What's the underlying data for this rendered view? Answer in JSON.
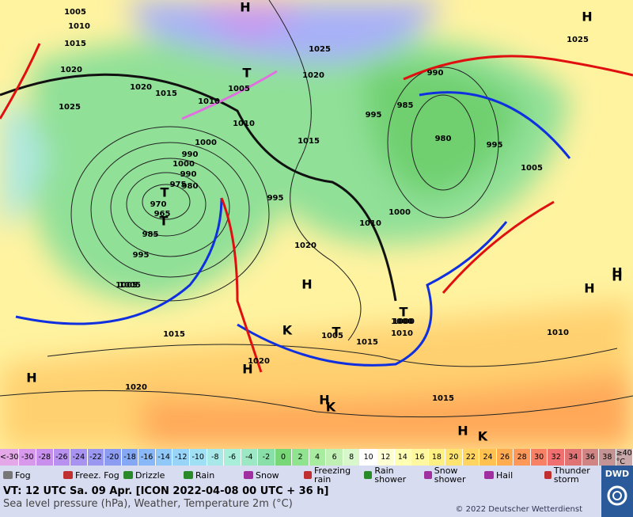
{
  "map": {
    "labels": [
      "H",
      "1005",
      "1010",
      "1015",
      "1020",
      "1025",
      "1015",
      "1020",
      "1025",
      "H",
      "1005",
      "T",
      "1010",
      "1010",
      "1015",
      "1020",
      "1025",
      "985",
      "990",
      "980",
      "995",
      "1000",
      "995",
      "1005",
      "1000",
      "990",
      "T",
      "1000",
      "990",
      "980",
      "975",
      "970",
      "965",
      "T",
      "985",
      "995",
      "1005",
      "1015",
      "1010",
      "1000",
      "995",
      "1020",
      "H",
      "1020",
      "H",
      "1010",
      "H",
      "H",
      "1015",
      "1010",
      "1005",
      "T",
      "1000",
      "1015",
      "K",
      "K",
      "T",
      "H",
      "K",
      "H",
      "1005",
      "H",
      "H",
      "1020"
    ],
    "colorbar": [
      {
        "label": "<-30",
        "color": "#e4a8e8"
      },
      {
        "label": "-30",
        "color": "#d898ec"
      },
      {
        "label": "-28",
        "color": "#c890ec"
      },
      {
        "label": "-26",
        "color": "#b890f0"
      },
      {
        "label": "-24",
        "color": "#a894f0"
      },
      {
        "label": "-22",
        "color": "#9a98f0"
      },
      {
        "label": "-20",
        "color": "#8c9cf0"
      },
      {
        "label": "-18",
        "color": "#84a8f4"
      },
      {
        "label": "-16",
        "color": "#88b8f8"
      },
      {
        "label": "-14",
        "color": "#90c8f8"
      },
      {
        "label": "-12",
        "color": "#98d4f8"
      },
      {
        "label": "-10",
        "color": "#a0e0f4"
      },
      {
        "label": "-8",
        "color": "#a8e8e8"
      },
      {
        "label": "-6",
        "color": "#a8eed8"
      },
      {
        "label": "-4",
        "color": "#9ce8c4"
      },
      {
        "label": "-2",
        "color": "#88e0a8"
      },
      {
        "label": "0",
        "color": "#78d878"
      },
      {
        "label": "2",
        "color": "#90e490"
      },
      {
        "label": "4",
        "color": "#a8eca0"
      },
      {
        "label": "6",
        "color": "#c0f0b4"
      },
      {
        "label": "8",
        "color": "#d8f8cc"
      },
      {
        "label": "10",
        "color": "#ffffff"
      },
      {
        "label": "12",
        "color": "#ffffd4"
      },
      {
        "label": "14",
        "color": "#ffffb4"
      },
      {
        "label": "16",
        "color": "#fff8a0"
      },
      {
        "label": "18",
        "color": "#fff084"
      },
      {
        "label": "20",
        "color": "#ffe470"
      },
      {
        "label": "22",
        "color": "#ffd460"
      },
      {
        "label": "24",
        "color": "#ffc250"
      },
      {
        "label": "26",
        "color": "#ffac50"
      },
      {
        "label": "28",
        "color": "#ff9858"
      },
      {
        "label": "30",
        "color": "#f88064"
      },
      {
        "label": "32",
        "color": "#f07070"
      },
      {
        "label": "34",
        "color": "#e07474"
      },
      {
        "label": "36",
        "color": "#d08484"
      },
      {
        "label": "38",
        "color": "#c49494"
      },
      {
        "label": "≥40 °C",
        "color": "#c8a8a8"
      }
    ],
    "legend": [
      "Fog",
      "Freez. Fog",
      "Drizzle",
      "Rain",
      "Snow",
      "Freezing rain",
      "Rain shower",
      "Snow shower",
      "Hail",
      "Thunder storm"
    ],
    "valid_time": "VT: 12 UTC Sa.  09 Apr. [ICON 2022-04-08  00 UTC + 36 h]",
    "description": "Sea level pressure (hPa), Weather, Temperature 2m (°C)",
    "copyright": "© 2022 Deutscher Wetterdienst",
    "logo": "DWD"
  }
}
